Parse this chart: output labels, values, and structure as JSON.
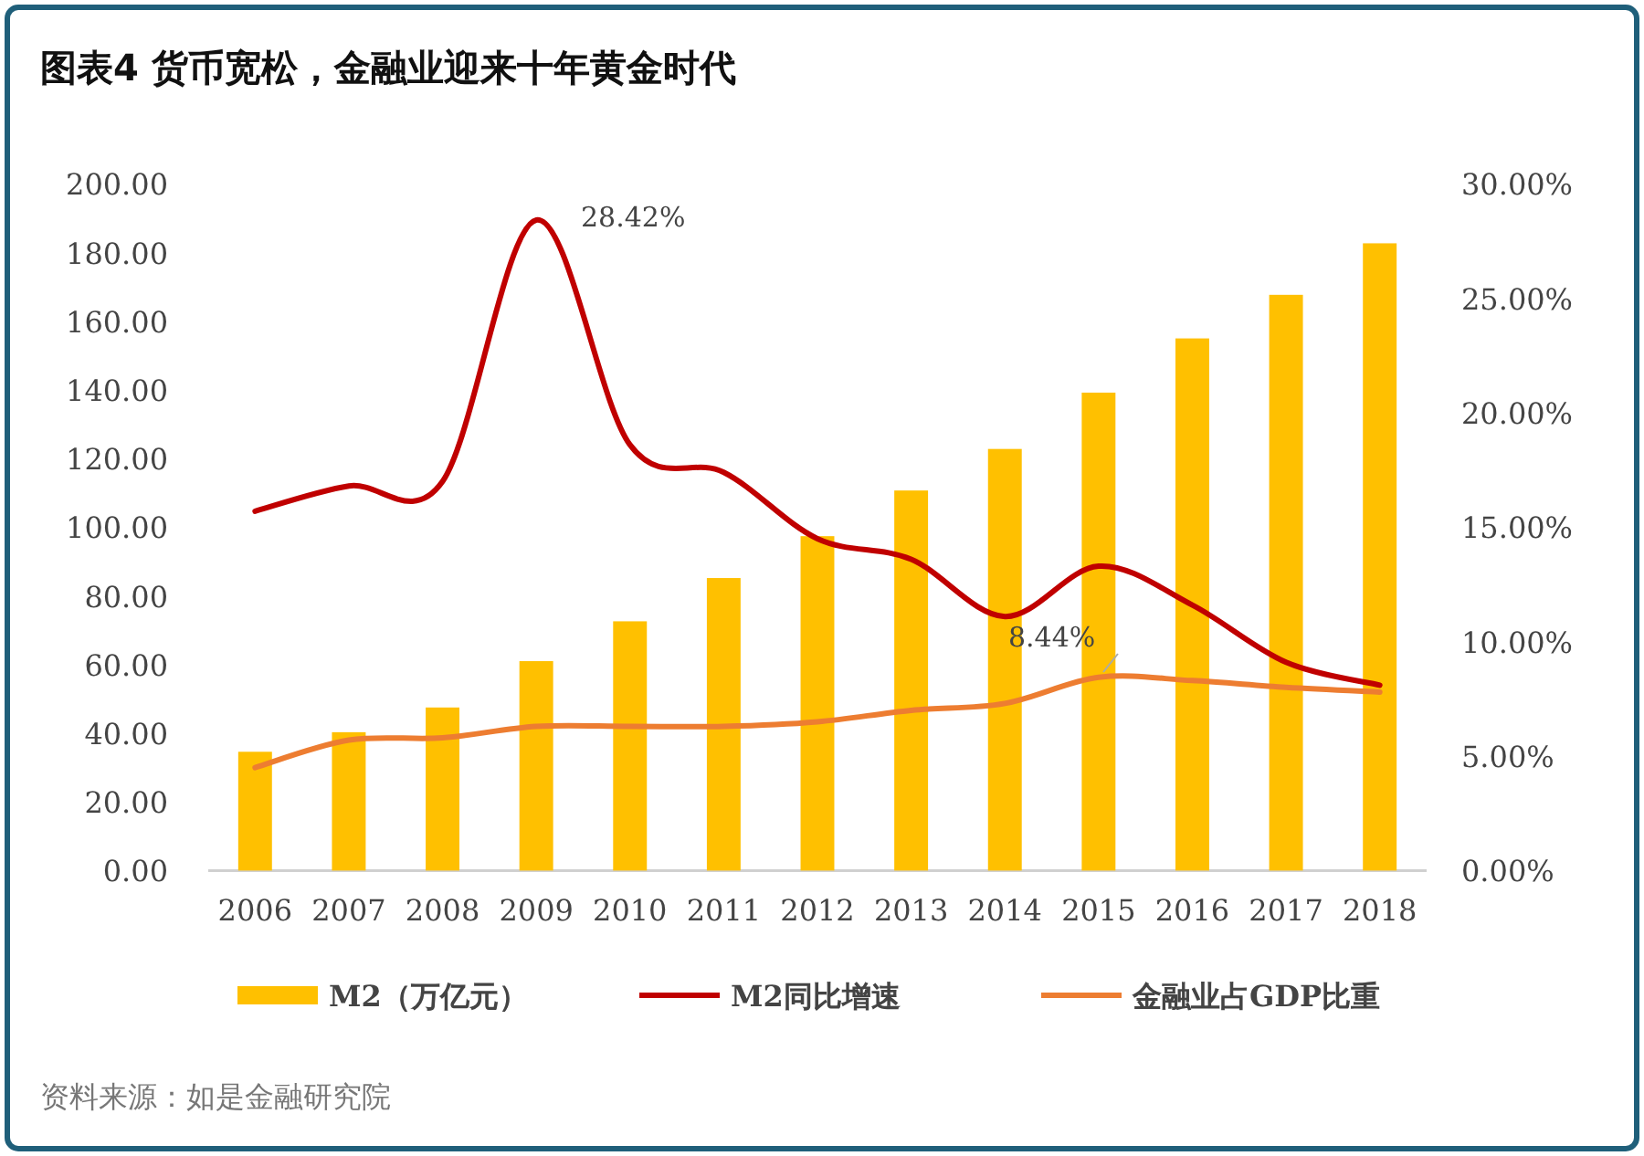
{
  "chart_data": {
    "type": "bar",
    "title": "图表4 货币宽松，金融业迎来十年黄金时代",
    "categories": [
      "2006",
      "2007",
      "2008",
      "2009",
      "2010",
      "2011",
      "2012",
      "2013",
      "2014",
      "2015",
      "2016",
      "2017",
      "2018"
    ],
    "series": [
      {
        "name": "M2（万亿元）",
        "color": "#ffc000",
        "values": [
          34.6,
          40.3,
          47.5,
          61.0,
          72.6,
          85.2,
          97.4,
          110.7,
          122.8,
          139.2,
          155.0,
          167.7,
          182.7
        ]
      },
      {
        "name": "M2同比增速",
        "type": "line",
        "axis": "y2",
        "color": "#c00000",
        "values": [
          15.7,
          16.8,
          17.0,
          28.42,
          18.6,
          17.4,
          14.5,
          13.6,
          11.1,
          13.3,
          11.6,
          9.1,
          8.1
        ]
      },
      {
        "name": "金融业占GDP比重",
        "type": "line",
        "axis": "y2",
        "color": "#ed7d31",
        "values": [
          4.5,
          5.7,
          5.8,
          6.3,
          6.3,
          6.3,
          6.5,
          7.0,
          7.3,
          8.44,
          8.3,
          8.0,
          7.8
        ]
      }
    ],
    "ylim": [
      0,
      200
    ],
    "yticks": [
      {
        "value": 0,
        "label": "0.00"
      },
      {
        "value": 20,
        "label": "20.00"
      },
      {
        "value": 40,
        "label": "40.00"
      },
      {
        "value": 60,
        "label": "60.00"
      },
      {
        "value": 80,
        "label": "80.00"
      },
      {
        "value": 100,
        "label": "100.00"
      },
      {
        "value": 120,
        "label": "120.00"
      },
      {
        "value": 140,
        "label": "140.00"
      },
      {
        "value": 160,
        "label": "160.00"
      },
      {
        "value": 180,
        "label": "180.00"
      },
      {
        "value": 200,
        "label": "200.00"
      }
    ],
    "y2lim": [
      0,
      30
    ],
    "y2ticks": [
      {
        "value": 0,
        "label": "0.00%"
      },
      {
        "value": 5,
        "label": "5.00%"
      },
      {
        "value": 10,
        "label": "10.00%"
      },
      {
        "value": 15,
        "label": "15.00%"
      },
      {
        "value": 20,
        "label": "20.00%"
      },
      {
        "value": 25,
        "label": "25.00%"
      },
      {
        "value": 30,
        "label": "30.00%"
      }
    ],
    "annotations": [
      "28.42%",
      "8.44%",
      "资料来源：如是金融研究院"
    ],
    "legend": "bottom"
  }
}
